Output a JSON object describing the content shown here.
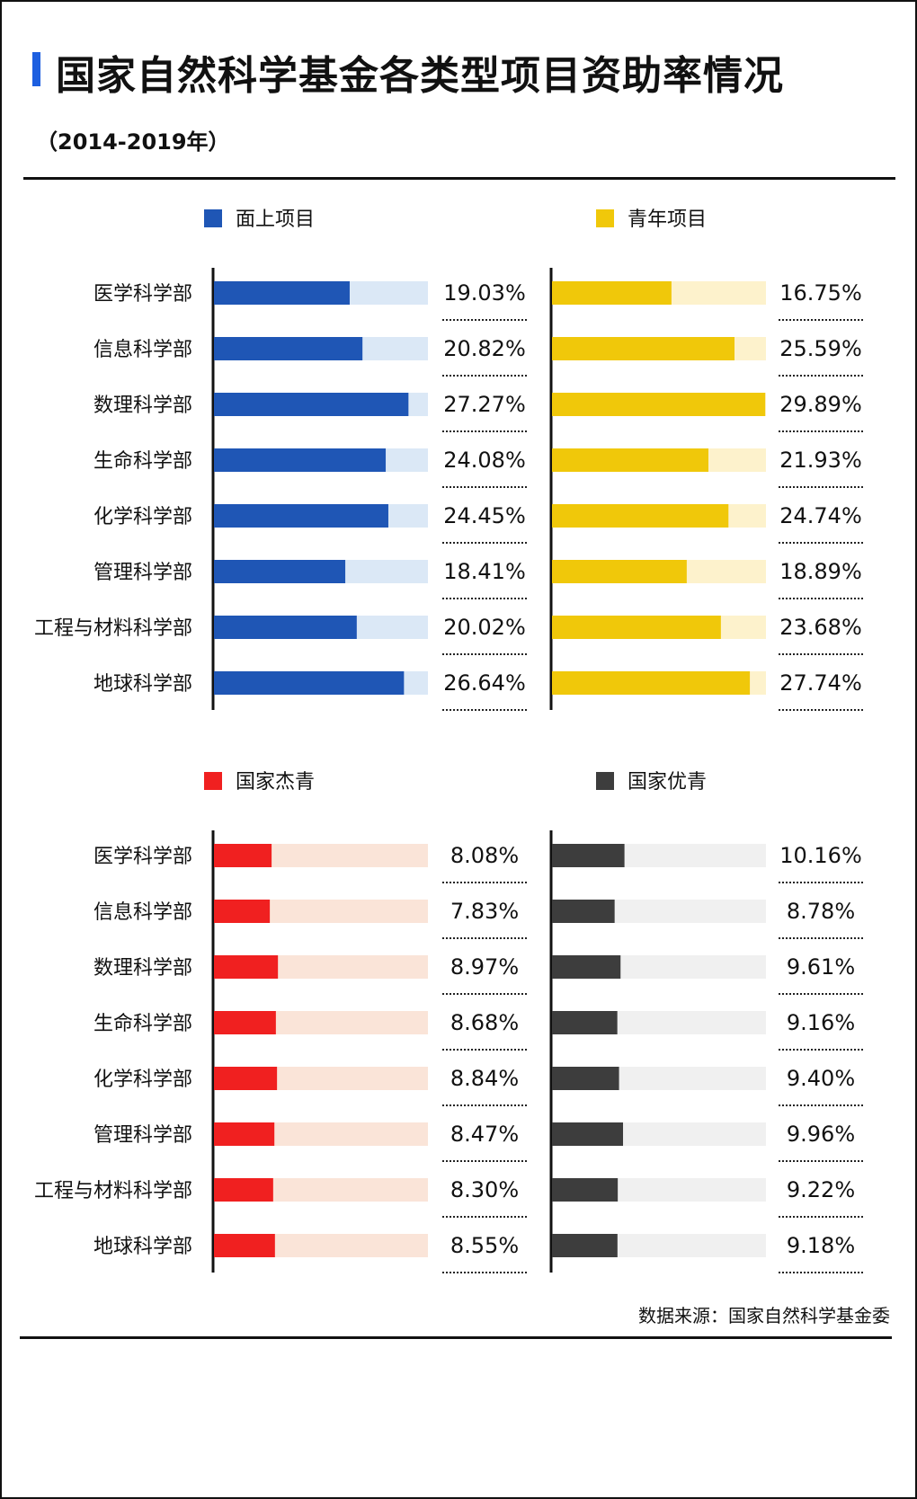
{
  "header": {
    "title": "国家自然科学基金各类型项目资助率情况",
    "subtitle": "（2014-2019年）"
  },
  "footer": {
    "source": "数据来源：国家自然科学基金委"
  },
  "chart_data": [
    {
      "type": "bar",
      "orientation": "horizontal",
      "categories": [
        "医学科学部",
        "信息科学部",
        "数理科学部",
        "生命科学部",
        "化学科学部",
        "管理科学部",
        "工程与材料科学部",
        "地球科学部"
      ],
      "series": [
        {
          "name": "面上项目",
          "values": [
            19.03,
            20.82,
            27.27,
            24.08,
            24.45,
            18.41,
            20.02,
            26.64
          ]
        }
      ],
      "data_labels": [
        "19.03%",
        "20.82%",
        "27.27%",
        "24.08%",
        "24.45%",
        "18.41%",
        "20.02%",
        "26.64%"
      ],
      "xlim": [
        0,
        30
      ],
      "unit": "%",
      "color": "#1f56b5",
      "track_color": "#dbe8f6",
      "legend": "top"
    },
    {
      "type": "bar",
      "orientation": "horizontal",
      "categories": [
        "医学科学部",
        "信息科学部",
        "数理科学部",
        "生命科学部",
        "化学科学部",
        "管理科学部",
        "工程与材料科学部",
        "地球科学部"
      ],
      "series": [
        {
          "name": "青年项目",
          "values": [
            16.75,
            25.59,
            29.89,
            21.93,
            24.74,
            18.89,
            23.68,
            27.74
          ]
        }
      ],
      "data_labels": [
        "16.75%",
        "25.59%",
        "29.89%",
        "21.93%",
        "24.74%",
        "18.89%",
        "23.68%",
        "27.74%"
      ],
      "xlim": [
        0,
        30
      ],
      "unit": "%",
      "color": "#f0c80a",
      "track_color": "#fdf2cc",
      "legend": "top"
    },
    {
      "type": "bar",
      "orientation": "horizontal",
      "categories": [
        "医学科学部",
        "信息科学部",
        "数理科学部",
        "生命科学部",
        "化学科学部",
        "管理科学部",
        "工程与材料科学部",
        "地球科学部"
      ],
      "series": [
        {
          "name": "国家杰青",
          "values": [
            8.08,
            7.83,
            8.97,
            8.68,
            8.84,
            8.47,
            8.3,
            8.55
          ]
        }
      ],
      "data_labels": [
        "8.08%",
        "7.83%",
        "8.97%",
        "8.68%",
        "8.84%",
        "8.47%",
        "8.30%",
        "8.55%"
      ],
      "xlim": [
        0,
        30
      ],
      "unit": "%",
      "color": "#f02020",
      "track_color": "#fae4d8",
      "legend": "top"
    },
    {
      "type": "bar",
      "orientation": "horizontal",
      "categories": [
        "医学科学部",
        "信息科学部",
        "数理科学部",
        "生命科学部",
        "化学科学部",
        "管理科学部",
        "工程与材料科学部",
        "地球科学部"
      ],
      "series": [
        {
          "name": "国家优青",
          "values": [
            10.16,
            8.78,
            9.61,
            9.16,
            9.4,
            9.96,
            9.22,
            9.18
          ]
        }
      ],
      "data_labels": [
        "10.16%",
        "8.78%",
        "9.61%",
        "9.16%",
        "9.40%",
        "9.96%",
        "9.22%",
        "9.18%"
      ],
      "xlim": [
        0,
        30
      ],
      "unit": "%",
      "color": "#3d3d3d",
      "track_color": "#f0f0f0",
      "legend": "top"
    }
  ]
}
